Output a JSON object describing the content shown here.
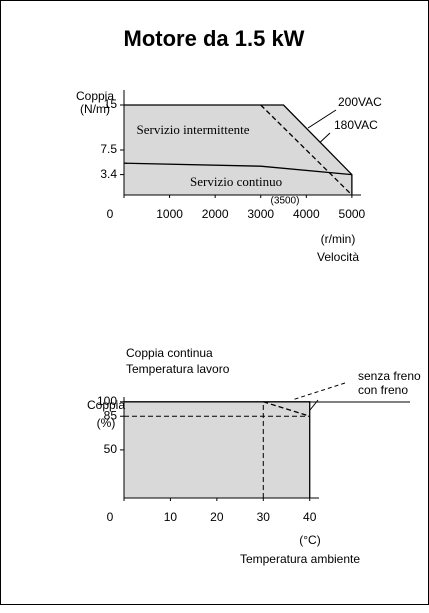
{
  "title": "Motore da 1.5 kW",
  "chart_data": [
    {
      "type": "line",
      "y_label": [
        "Coppia",
        "(N/m)"
      ],
      "x_label": [
        "(r/min)",
        "Velocità"
      ],
      "annotations": [
        "Servizio intermittente",
        "(3500)"
      ],
      "xlim": [
        0,
        5200
      ],
      "xticks": [
        0,
        1000,
        2000,
        3000,
        4000,
        5000
      ],
      "ylim": [
        0,
        17.5
      ],
      "yticks": [
        3.4,
        7.5,
        15
      ],
      "series": [
        {
          "name": "200VAC",
          "color": "#000000",
          "style": "solid",
          "fill": "#d9d9d9",
          "x": [
            0,
            3500,
            5000,
            5000
          ],
          "values": [
            15,
            15,
            3.4,
            0
          ]
        },
        {
          "name": "180VAC",
          "color": "#000000",
          "style": "dashed",
          "x": [
            3000,
            5000
          ],
          "values": [
            15,
            0
          ]
        },
        {
          "name": "Servizio continuo",
          "color": "#000000",
          "style": "solid",
          "x": [
            0,
            3000,
            5000
          ],
          "values": [
            5.3,
            4.8,
            3.4
          ]
        }
      ]
    },
    {
      "type": "line",
      "subtitle": [
        "Coppia continua",
        "Temperatura lavoro"
      ],
      "y_label": [
        "Coppia",
        "(%)"
      ],
      "x_label": [
        "(°C)",
        "Temperatura ambiente"
      ],
      "xlim": [
        0,
        42
      ],
      "xticks": [
        0,
        10,
        20,
        30,
        40
      ],
      "ylim": [
        0,
        105
      ],
      "yticks": [
        50,
        85,
        100
      ],
      "series": [
        {
          "name": "senza freno",
          "color": "#000000",
          "style": "solid",
          "fill": "#d9d9d9",
          "x": [
            0,
            40,
            40
          ],
          "values": [
            100,
            100,
            0
          ]
        },
        {
          "name": "con freno",
          "color": "#000000",
          "style": "dashed",
          "x": [
            30,
            40
          ],
          "values": [
            100,
            85
          ]
        }
      ]
    }
  ]
}
